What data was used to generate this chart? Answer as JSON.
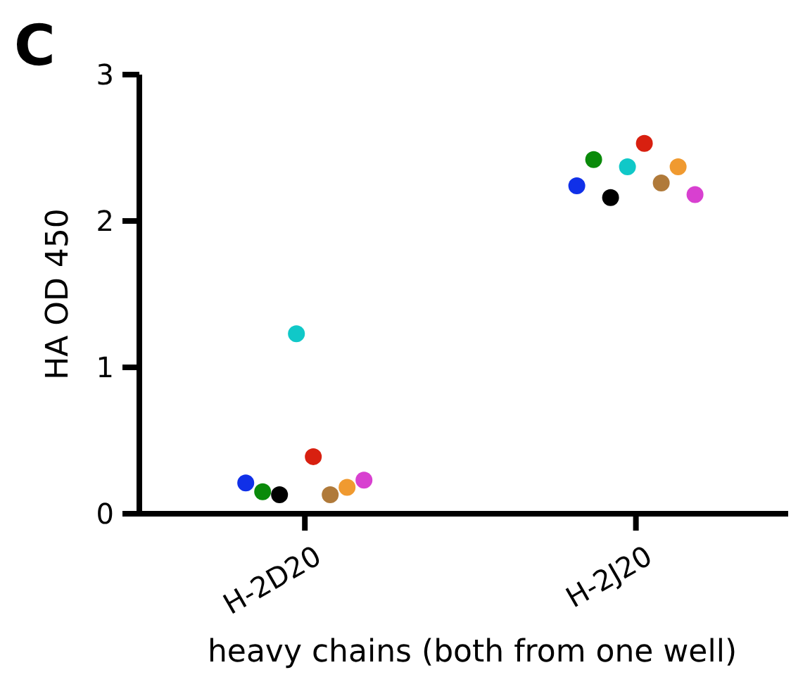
{
  "chart_data": {
    "type": "scatter",
    "title": "C",
    "xlabel": "heavy chains (both from one well)",
    "ylabel": "HA OD 450",
    "categories": [
      "H-2D20",
      "H-2J20"
    ],
    "series": [
      {
        "color": "#1030e8",
        "x": [
          "H-2D20",
          "H-2J20"
        ],
        "values": [
          0.21,
          2.24
        ]
      },
      {
        "color": "#0a8a0a",
        "x": [
          "H-2D20",
          "H-2J20"
        ],
        "values": [
          0.15,
          2.42
        ]
      },
      {
        "color": "#000000",
        "x": [
          "H-2D20",
          "H-2J20"
        ],
        "values": [
          0.13,
          2.16
        ]
      },
      {
        "color": "#10c8c8",
        "x": [
          "H-2D20",
          "H-2J20"
        ],
        "values": [
          1.23,
          2.37
        ]
      },
      {
        "color": "#d82010",
        "x": [
          "H-2D20",
          "H-2J20"
        ],
        "values": [
          0.39,
          2.53
        ]
      },
      {
        "color": "#b07a3a",
        "x": [
          "H-2D20",
          "H-2J20"
        ],
        "values": [
          0.13,
          2.26
        ]
      },
      {
        "color": "#f09a30",
        "x": [
          "H-2D20",
          "H-2J20"
        ],
        "values": [
          0.18,
          2.37
        ]
      },
      {
        "color": "#d840d0",
        "x": [
          "H-2D20",
          "H-2J20"
        ],
        "values": [
          0.23,
          2.18
        ]
      }
    ],
    "ylim": [
      0,
      3
    ],
    "yticks": [
      0,
      1,
      2,
      3
    ],
    "marker": "circle",
    "grid": false
  }
}
